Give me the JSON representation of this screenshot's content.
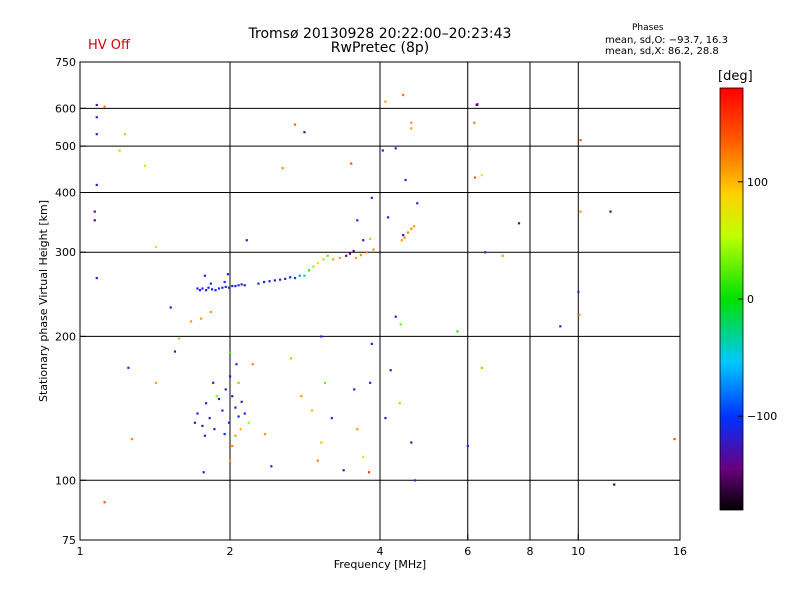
{
  "header": {
    "status": "HV Off",
    "title": "Tromsø 20130928 20:22:00–20:23:43",
    "subtitle": "RwPretec (8p)",
    "phase_heading": "Phases",
    "phase_o": "mean, sd,O: −93.7, 16.3",
    "phase_x": "mean, sd,X: 86.2, 28.8"
  },
  "colorbar": {
    "unit": "[deg]",
    "range": [
      -180,
      180
    ],
    "ticks": [
      {
        "v": 100,
        "label": "100"
      },
      {
        "v": 0,
        "label": "0"
      },
      {
        "v": -100,
        "label": "−100"
      }
    ]
  },
  "chart_data": {
    "type": "scatter",
    "title": "Tromsø 20130928 20:22:00–20:23:43",
    "xlabel": "Frequency [MHz]",
    "ylabel": "Stationary phase Virtual Height [km]",
    "xscale": "log",
    "yscale": "log",
    "xlim": [
      1,
      16
    ],
    "ylim": [
      75,
      750
    ],
    "xticks": [
      1,
      2,
      4,
      6,
      8,
      10,
      16
    ],
    "xtick_labels": [
      "1",
      "2",
      "4",
      "6",
      "8",
      "10",
      "16"
    ],
    "yticks": [
      75,
      100,
      200,
      300,
      400,
      500,
      600,
      750
    ],
    "ytick_labels": [
      "75",
      "100",
      "200",
      "300",
      "400",
      "500",
      "600",
      "750"
    ],
    "vgrid": [
      2,
      4,
      6,
      8,
      10
    ],
    "hgrid": [
      100,
      200,
      300,
      400,
      500,
      600
    ],
    "color_variable": "phase [deg]",
    "points": [
      {
        "x": 1.72,
        "y": 252,
        "c": -112
      },
      {
        "x": 1.74,
        "y": 250,
        "c": -115
      },
      {
        "x": 1.76,
        "y": 252,
        "c": -110
      },
      {
        "x": 1.79,
        "y": 250,
        "c": -118
      },
      {
        "x": 1.81,
        "y": 253,
        "c": -105
      },
      {
        "x": 1.84,
        "y": 251,
        "c": -112
      },
      {
        "x": 1.87,
        "y": 250,
        "c": -120
      },
      {
        "x": 1.9,
        "y": 252,
        "c": -108
      },
      {
        "x": 1.93,
        "y": 253,
        "c": -112
      },
      {
        "x": 1.96,
        "y": 254,
        "c": -115
      },
      {
        "x": 1.99,
        "y": 253,
        "c": -110
      },
      {
        "x": 2.02,
        "y": 255,
        "c": -118
      },
      {
        "x": 2.05,
        "y": 255,
        "c": -112
      },
      {
        "x": 2.08,
        "y": 256,
        "c": -105
      },
      {
        "x": 2.11,
        "y": 257,
        "c": -115
      },
      {
        "x": 2.14,
        "y": 256,
        "c": -110
      },
      {
        "x": 1.83,
        "y": 258,
        "c": -108
      },
      {
        "x": 1.95,
        "y": 260,
        "c": -115
      },
      {
        "x": 1.78,
        "y": 268,
        "c": -112
      },
      {
        "x": 1.98,
        "y": 270,
        "c": -118
      },
      {
        "x": 2.28,
        "y": 258,
        "c": -112
      },
      {
        "x": 2.34,
        "y": 260,
        "c": -110
      },
      {
        "x": 2.4,
        "y": 261,
        "c": -115
      },
      {
        "x": 2.46,
        "y": 262,
        "c": -118
      },
      {
        "x": 2.52,
        "y": 263,
        "c": -110
      },
      {
        "x": 2.58,
        "y": 264,
        "c": -105
      },
      {
        "x": 2.64,
        "y": 266,
        "c": -100
      },
      {
        "x": 2.7,
        "y": 265,
        "c": -95
      },
      {
        "x": 2.76,
        "y": 268,
        "c": -70
      },
      {
        "x": 2.82,
        "y": 268,
        "c": -40
      },
      {
        "x": 2.88,
        "y": 275,
        "c": 10
      },
      {
        "x": 2.94,
        "y": 280,
        "c": 40
      },
      {
        "x": 3.0,
        "y": 285,
        "c": 70
      },
      {
        "x": 3.08,
        "y": 290,
        "c": 95
      },
      {
        "x": 3.14,
        "y": 295,
        "c": 25
      },
      {
        "x": 3.22,
        "y": 290,
        "c": 105
      },
      {
        "x": 3.32,
        "y": 292,
        "c": 110
      },
      {
        "x": 3.42,
        "y": 295,
        "c": -145
      },
      {
        "x": 3.48,
        "y": 298,
        "c": -140
      },
      {
        "x": 3.54,
        "y": 302,
        "c": -150
      },
      {
        "x": 3.58,
        "y": 292,
        "c": 110
      },
      {
        "x": 3.66,
        "y": 296,
        "c": 115
      },
      {
        "x": 3.76,
        "y": 300,
        "c": 120
      },
      {
        "x": 3.88,
        "y": 304,
        "c": 115
      },
      {
        "x": 3.7,
        "y": 318,
        "c": -120
      },
      {
        "x": 3.82,
        "y": 320,
        "c": 95
      },
      {
        "x": 4.42,
        "y": 318,
        "c": 110
      },
      {
        "x": 4.48,
        "y": 322,
        "c": 115
      },
      {
        "x": 4.55,
        "y": 330,
        "c": 120
      },
      {
        "x": 4.62,
        "y": 336,
        "c": 118
      },
      {
        "x": 4.68,
        "y": 340,
        "c": 112
      },
      {
        "x": 4.45,
        "y": 326,
        "c": -135
      },
      {
        "x": 1.72,
        "y": 138,
        "c": -115
      },
      {
        "x": 1.76,
        "y": 130,
        "c": -110
      },
      {
        "x": 1.79,
        "y": 145,
        "c": -118
      },
      {
        "x": 1.82,
        "y": 135,
        "c": -112
      },
      {
        "x": 1.86,
        "y": 128,
        "c": -115
      },
      {
        "x": 1.9,
        "y": 148,
        "c": -108
      },
      {
        "x": 1.93,
        "y": 140,
        "c": -112
      },
      {
        "x": 1.96,
        "y": 155,
        "c": -115
      },
      {
        "x": 1.99,
        "y": 132,
        "c": -110
      },
      {
        "x": 2.02,
        "y": 150,
        "c": -118
      },
      {
        "x": 2.05,
        "y": 142,
        "c": -112
      },
      {
        "x": 2.08,
        "y": 136,
        "c": -105
      },
      {
        "x": 2.11,
        "y": 146,
        "c": -115
      },
      {
        "x": 2.14,
        "y": 138,
        "c": -110
      },
      {
        "x": 1.85,
        "y": 160,
        "c": -112
      },
      {
        "x": 2.0,
        "y": 165,
        "c": -118
      },
      {
        "x": 1.95,
        "y": 125,
        "c": -108
      },
      {
        "x": 2.1,
        "y": 128,
        "c": 100
      },
      {
        "x": 2.05,
        "y": 124,
        "c": 110
      },
      {
        "x": 1.88,
        "y": 150,
        "c": 40
      },
      {
        "x": 2.18,
        "y": 132,
        "c": 45
      },
      {
        "x": 2.02,
        "y": 118,
        "c": 115
      },
      {
        "x": 2.08,
        "y": 160,
        "c": 30
      },
      {
        "x": 1.78,
        "y": 124,
        "c": -110
      },
      {
        "x": 1.7,
        "y": 132,
        "c": -115
      },
      {
        "x": 2.06,
        "y": 175,
        "c": -110
      },
      {
        "x": 2.0,
        "y": 185,
        "c": 20
      },
      {
        "x": 1.08,
        "y": 530,
        "c": -115
      },
      {
        "x": 1.08,
        "y": 575,
        "c": -110
      },
      {
        "x": 1.08,
        "y": 610,
        "c": -130
      },
      {
        "x": 1.12,
        "y": 605,
        "c": 125
      },
      {
        "x": 1.2,
        "y": 490,
        "c": 40
      },
      {
        "x": 1.23,
        "y": 530,
        "c": 40
      },
      {
        "x": 1.35,
        "y": 455,
        "c": 50
      },
      {
        "x": 1.08,
        "y": 415,
        "c": -120
      },
      {
        "x": 1.07,
        "y": 365,
        "c": -140
      },
      {
        "x": 1.07,
        "y": 350,
        "c": -150
      },
      {
        "x": 1.08,
        "y": 265,
        "c": -115
      },
      {
        "x": 1.25,
        "y": 172,
        "c": -110
      },
      {
        "x": 1.42,
        "y": 308,
        "c": 50
      },
      {
        "x": 1.42,
        "y": 160,
        "c": 110
      },
      {
        "x": 1.27,
        "y": 122,
        "c": 120
      },
      {
        "x": 1.52,
        "y": 230,
        "c": -110
      },
      {
        "x": 1.58,
        "y": 198,
        "c": 100
      },
      {
        "x": 1.55,
        "y": 186,
        "c": -110
      },
      {
        "x": 1.67,
        "y": 215,
        "c": 110
      },
      {
        "x": 1.75,
        "y": 218,
        "c": 110
      },
      {
        "x": 1.83,
        "y": 225,
        "c": 110
      },
      {
        "x": 1.12,
        "y": 90,
        "c": 140
      },
      {
        "x": 1.77,
        "y": 104,
        "c": -110
      },
      {
        "x": 2.0,
        "y": 110,
        "c": 110
      },
      {
        "x": 2.16,
        "y": 318,
        "c": -120
      },
      {
        "x": 2.22,
        "y": 175,
        "c": 120
      },
      {
        "x": 2.35,
        "y": 125,
        "c": 115
      },
      {
        "x": 2.42,
        "y": 107,
        "c": -110
      },
      {
        "x": 2.55,
        "y": 450,
        "c": 115
      },
      {
        "x": 2.7,
        "y": 555,
        "c": 130
      },
      {
        "x": 2.82,
        "y": 535,
        "c": -140
      },
      {
        "x": 2.65,
        "y": 180,
        "c": 100
      },
      {
        "x": 2.78,
        "y": 150,
        "c": 110
      },
      {
        "x": 2.92,
        "y": 140,
        "c": 100
      },
      {
        "x": 3.1,
        "y": 160,
        "c": 30
      },
      {
        "x": 3.2,
        "y": 135,
        "c": -110
      },
      {
        "x": 3.0,
        "y": 110,
        "c": 120
      },
      {
        "x": 3.05,
        "y": 120,
        "c": 100
      },
      {
        "x": 3.05,
        "y": 200,
        "c": -110
      },
      {
        "x": 3.38,
        "y": 105,
        "c": -130
      },
      {
        "x": 3.5,
        "y": 460,
        "c": 140
      },
      {
        "x": 3.55,
        "y": 155,
        "c": -110
      },
      {
        "x": 3.8,
        "y": 104,
        "c": 150
      },
      {
        "x": 3.82,
        "y": 160,
        "c": -110
      },
      {
        "x": 3.85,
        "y": 193,
        "c": -115
      },
      {
        "x": 3.6,
        "y": 350,
        "c": -110
      },
      {
        "x": 3.85,
        "y": 390,
        "c": -110
      },
      {
        "x": 4.05,
        "y": 490,
        "c": -110
      },
      {
        "x": 4.1,
        "y": 620,
        "c": 110
      },
      {
        "x": 4.15,
        "y": 355,
        "c": -110
      },
      {
        "x": 4.3,
        "y": 495,
        "c": -110
      },
      {
        "x": 4.2,
        "y": 170,
        "c": -115
      },
      {
        "x": 4.3,
        "y": 220,
        "c": -110
      },
      {
        "x": 4.4,
        "y": 212,
        "c": 30
      },
      {
        "x": 4.45,
        "y": 640,
        "c": 125
      },
      {
        "x": 4.5,
        "y": 425,
        "c": -115
      },
      {
        "x": 4.62,
        "y": 560,
        "c": 115
      },
      {
        "x": 4.62,
        "y": 545,
        "c": 110
      },
      {
        "x": 4.62,
        "y": 120,
        "c": -130
      },
      {
        "x": 4.75,
        "y": 380,
        "c": -110
      },
      {
        "x": 4.38,
        "y": 145,
        "c": 100
      },
      {
        "x": 4.1,
        "y": 135,
        "c": -110
      },
      {
        "x": 3.6,
        "y": 128,
        "c": 110
      },
      {
        "x": 3.7,
        "y": 112,
        "c": 60
      },
      {
        "x": 4.7,
        "y": 100,
        "c": -110
      },
      {
        "x": 5.72,
        "y": 205,
        "c": 10
      },
      {
        "x": 6.0,
        "y": 118,
        "c": -110
      },
      {
        "x": 6.18,
        "y": 560,
        "c": 120
      },
      {
        "x": 6.25,
        "y": 610,
        "c": -145
      },
      {
        "x": 6.27,
        "y": 612,
        "c": -150
      },
      {
        "x": 6.2,
        "y": 430,
        "c": 140
      },
      {
        "x": 6.4,
        "y": 435,
        "c": 60
      },
      {
        "x": 6.5,
        "y": 300,
        "c": -110
      },
      {
        "x": 6.4,
        "y": 172,
        "c": 30
      },
      {
        "x": 7.05,
        "y": 295,
        "c": 110
      },
      {
        "x": 7.6,
        "y": 345,
        "c": -140
      },
      {
        "x": 9.2,
        "y": 210,
        "c": -110
      },
      {
        "x": 10.0,
        "y": 248,
        "c": -110
      },
      {
        "x": 10.05,
        "y": 222,
        "c": 110
      },
      {
        "x": 10.1,
        "y": 365,
        "c": 110
      },
      {
        "x": 10.1,
        "y": 515,
        "c": 140
      },
      {
        "x": 11.6,
        "y": 365,
        "c": -150
      },
      {
        "x": 11.8,
        "y": 98,
        "c": -160
      },
      {
        "x": 15.6,
        "y": 122,
        "c": 140
      }
    ]
  }
}
